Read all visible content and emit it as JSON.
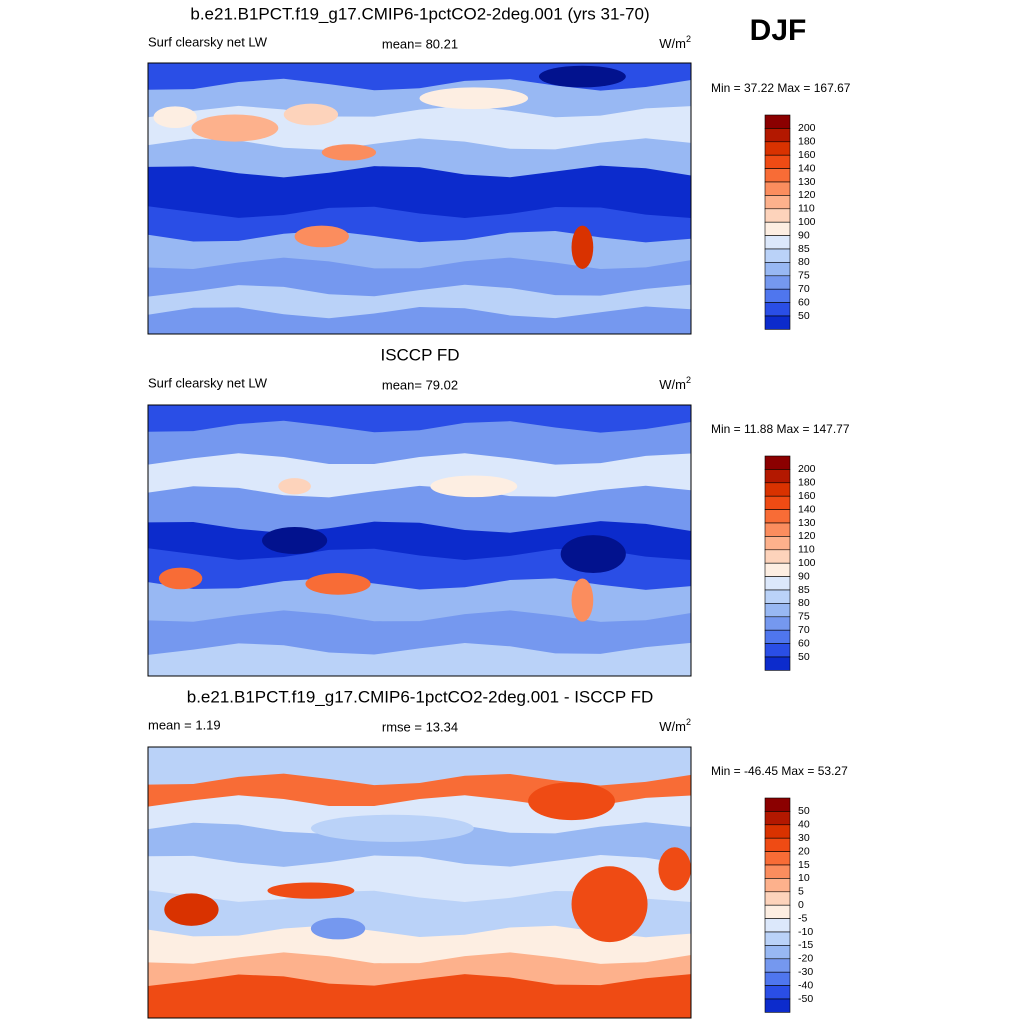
{
  "season": "DJF",
  "panels": [
    {
      "title": "b.e21.B1PCT.f19_g17.CMIP6-1pctCO2-2deg.001 (yrs 31-70)",
      "left_label": "Surf clearsky net LW",
      "center_label": "mean=  80.21",
      "units": {
        "base": "W/m",
        "exponent": "2"
      },
      "minmax": "Min =  37.22 Max = 167.67",
      "colorbar": {
        "labels": [
          "200",
          "180",
          "160",
          "140",
          "130",
          "120",
          "110",
          "100",
          "90",
          "85",
          "80",
          "75",
          "70",
          "60",
          "50"
        ],
        "colors": [
          "#8b0000",
          "#b31800",
          "#d93200",
          "#ef4b14",
          "#f86c36",
          "#fb8d5e",
          "#fdb18c",
          "#fdd3bb",
          "#fdeee2",
          "#dce8fb",
          "#bad2f8",
          "#98b8f3",
          "#7598ef",
          "#4f76ee",
          "#2a4ee6",
          "#0c2bcc",
          "#02128e"
        ]
      }
    },
    {
      "title": "ISCCP FD",
      "left_label": "Surf clearsky net LW",
      "center_label": "mean=  79.02",
      "units": {
        "base": "W/m",
        "exponent": "2"
      },
      "minmax": "Min =  11.88 Max = 147.77",
      "colorbar": {
        "labels": [
          "200",
          "180",
          "160",
          "140",
          "130",
          "120",
          "110",
          "100",
          "90",
          "85",
          "80",
          "75",
          "70",
          "60",
          "50"
        ],
        "colors": [
          "#8b0000",
          "#b31800",
          "#d93200",
          "#ef4b14",
          "#f86c36",
          "#fb8d5e",
          "#fdb18c",
          "#fdd3bb",
          "#fdeee2",
          "#dce8fb",
          "#bad2f8",
          "#98b8f3",
          "#7598ef",
          "#4f76ee",
          "#2a4ee6",
          "#0c2bcc",
          "#02128e"
        ]
      }
    },
    {
      "title": "b.e21.B1PCT.f19_g17.CMIP6-1pctCO2-2deg.001 - ISCCP FD",
      "left_label": "mean =   1.19",
      "center_label": "rmse =  13.34",
      "units": {
        "base": "W/m",
        "exponent": "2"
      },
      "minmax": "Min = -46.45 Max =  53.27",
      "colorbar": {
        "labels": [
          "50",
          "40",
          "30",
          "20",
          "15",
          "10",
          "5",
          "0",
          "-5",
          "-10",
          "-15",
          "-20",
          "-30",
          "-40",
          "-50"
        ],
        "colors": [
          "#8b0000",
          "#b31800",
          "#d93200",
          "#ef4b14",
          "#f86c36",
          "#fb8d5e",
          "#fdb18c",
          "#fdd3bb",
          "#fdeee2",
          "#dce8fb",
          "#bad2f8",
          "#98b8f3",
          "#7598ef",
          "#4f76ee",
          "#2a4ee6",
          "#0c2bcc",
          "#02128e"
        ]
      }
    }
  ]
}
